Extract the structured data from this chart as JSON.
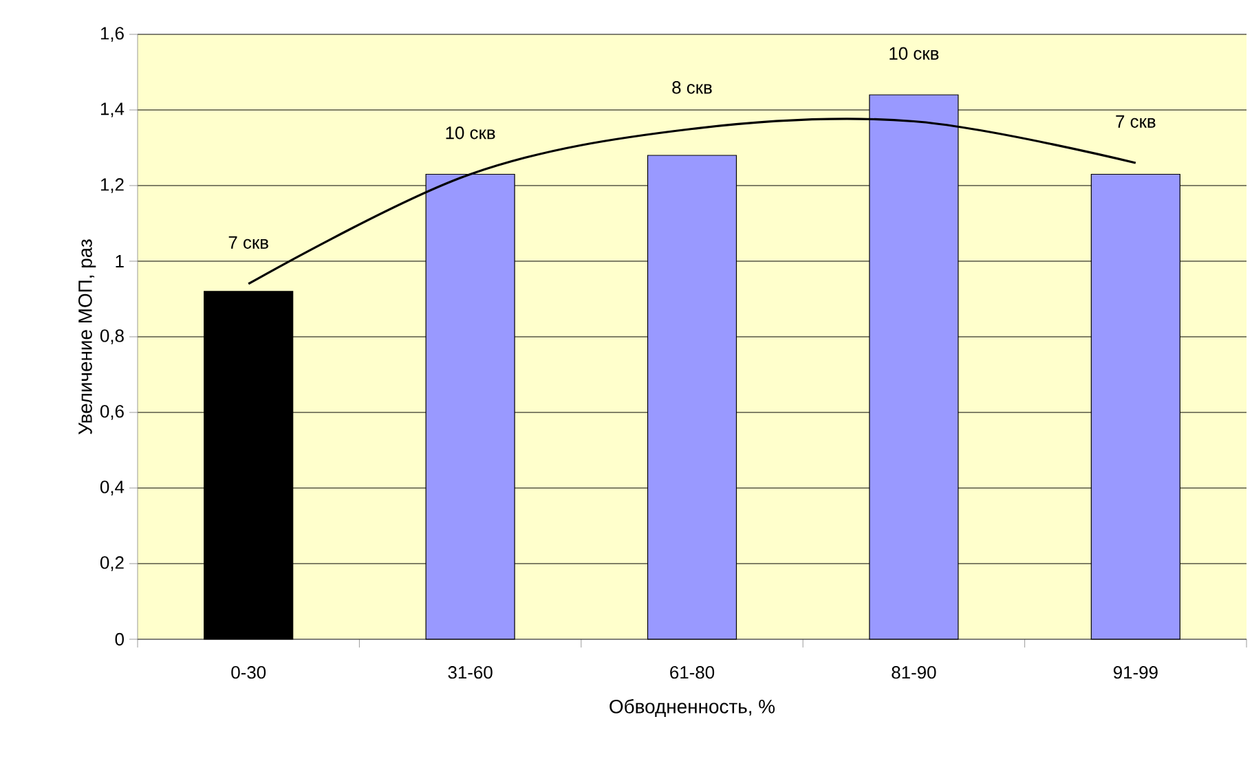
{
  "chart_data": {
    "type": "bar",
    "xlabel": "Обводненность, %",
    "ylabel": "Увеличение МОП, раз",
    "categories": [
      "0-30",
      "31-60",
      "61-80",
      "81-90",
      "91-99"
    ],
    "series": [
      {
        "colors": [
          "#000000",
          "#9999ff",
          "#9999ff",
          "#9999ff",
          "#9999ff"
        ],
        "values": [
          0.92,
          1.23,
          1.28,
          1.44,
          1.23
        ]
      },
      {
        "type": "line",
        "color": "#000000",
        "values": [
          0.94,
          1.23,
          1.35,
          1.37,
          1.26
        ]
      }
    ],
    "ylim": [
      0,
      1.6
    ],
    "yticks": [
      0,
      {
        "value": 0.2,
        "label": "0,2"
      },
      {
        "value": 0.4,
        "label": "0,4"
      },
      {
        "value": 0.6,
        "label": "0,6"
      },
      {
        "value": 0.8,
        "label": "0,8"
      },
      1,
      {
        "value": 1.2,
        "label": "1,2"
      },
      {
        "value": 1.4,
        "label": "1,4"
      },
      {
        "value": 1.6,
        "label": "1,6"
      }
    ],
    "grid": "y",
    "marker": "none",
    "line_style": "solid",
    "annotations": [
      "7 скв",
      "10 скв",
      "8 скв",
      "10 скв",
      "7 скв"
    ]
  }
}
